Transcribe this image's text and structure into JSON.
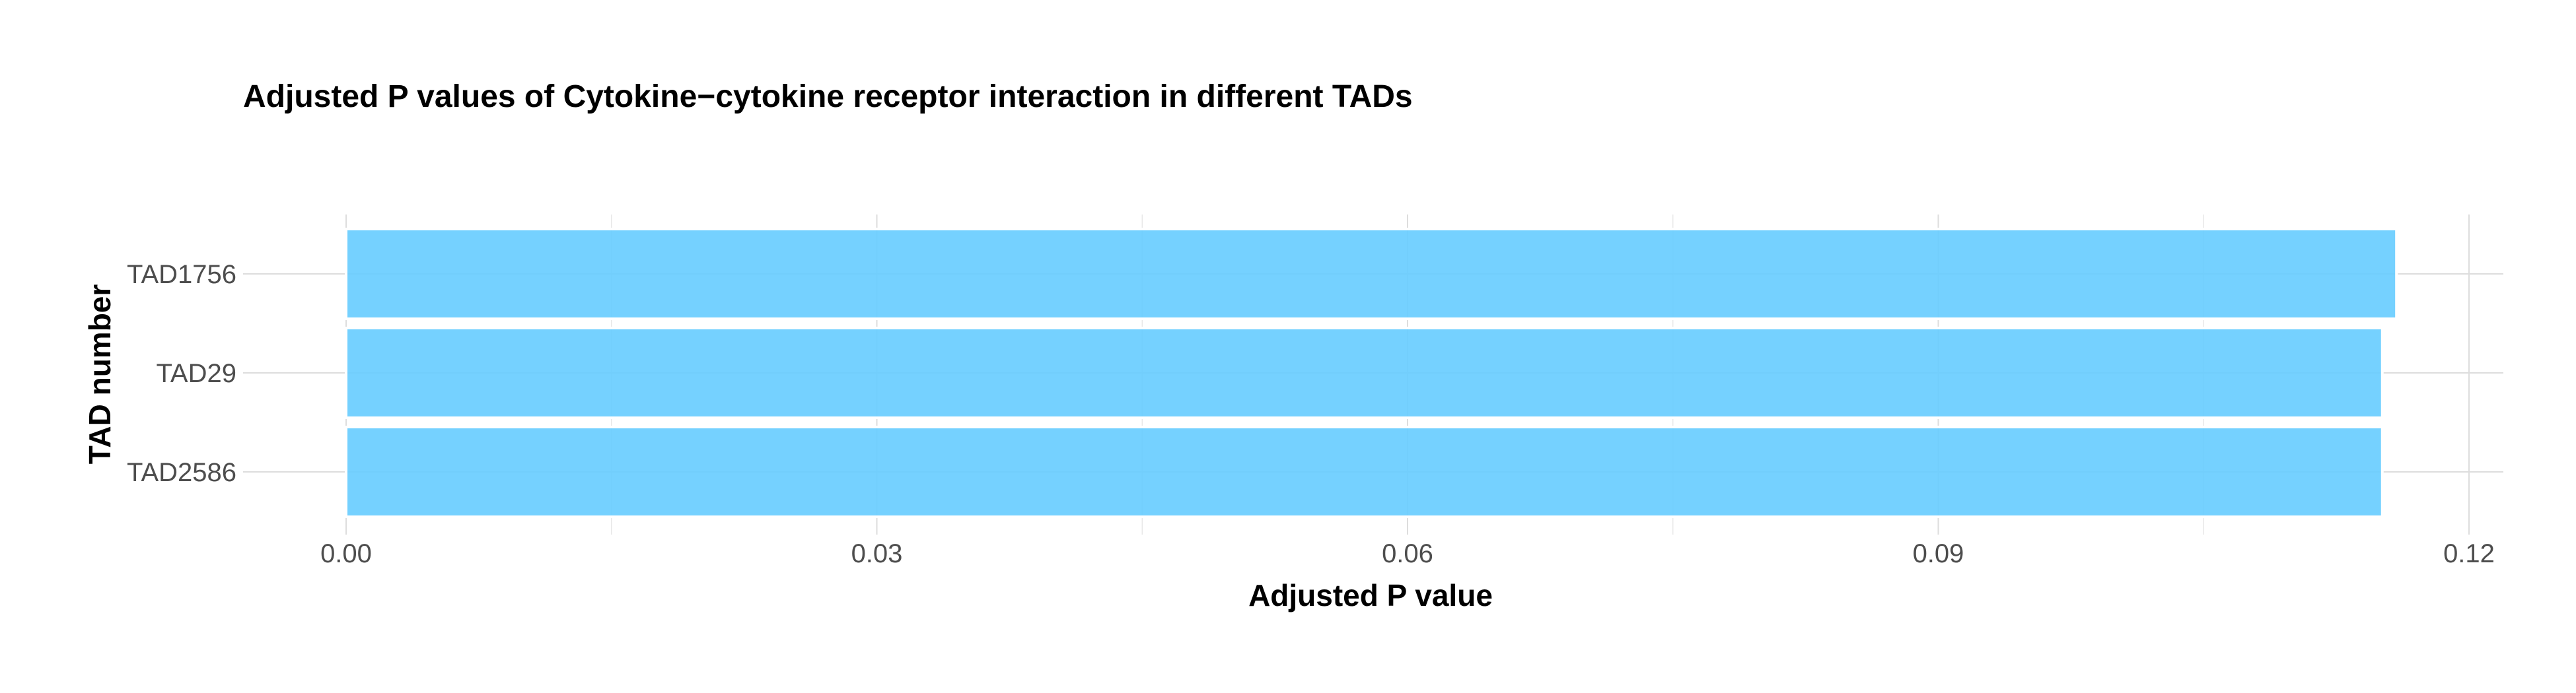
{
  "chart_data": {
    "type": "bar",
    "orientation": "horizontal",
    "title": "Adjusted P values of Cytokine−cytokine receptor interaction in different TADs",
    "xlabel": "Adjusted P value",
    "ylabel": "TAD number",
    "categories": [
      "TAD1756",
      "TAD29",
      "TAD2586"
    ],
    "values": [
      0.1159,
      0.1151,
      0.1151
    ],
    "xlim": [
      0,
      0.12
    ],
    "xticks": [
      "0.00",
      "0.03",
      "0.06",
      "0.09",
      "0.12"
    ],
    "grid": true,
    "bar_color": "#66CCFF"
  }
}
